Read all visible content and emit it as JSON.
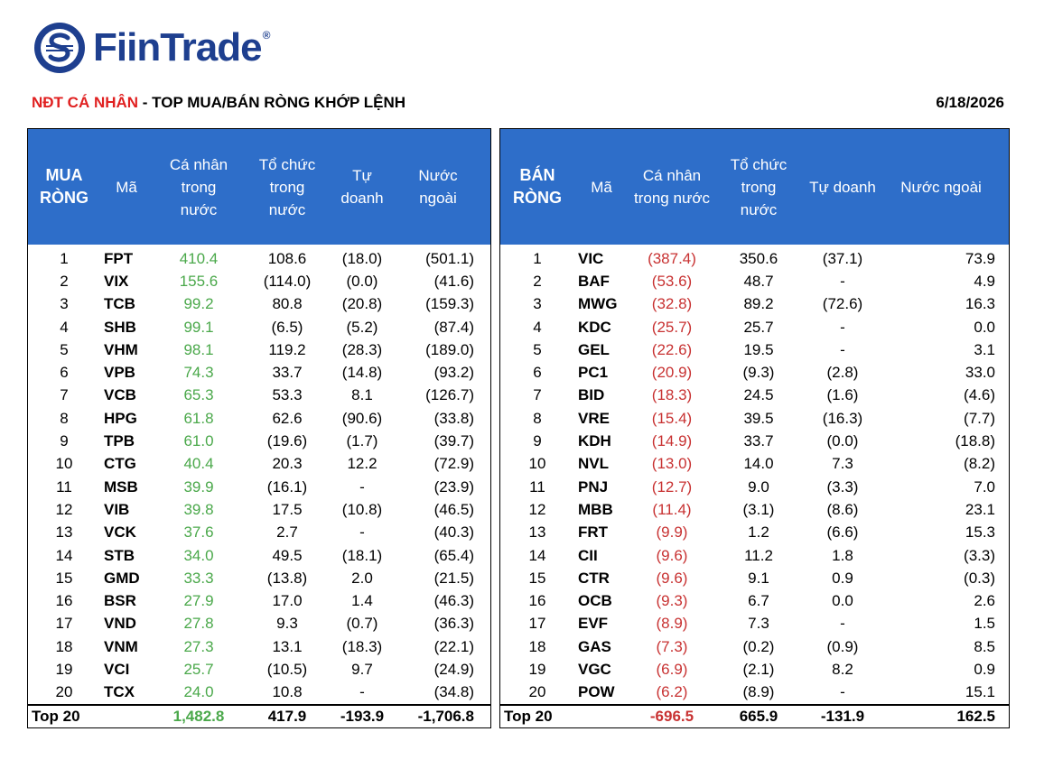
{
  "brand": {
    "name": "FiinTrade",
    "reg": "®"
  },
  "title": {
    "accent": "NĐT CÁ NHÂN",
    "rest": " - TOP MUA/BÁN RÒNG KHỚP LỆNH"
  },
  "date": "6/18/2026",
  "colors": {
    "header_bg": "#2e6ec9",
    "positive": "#4aa84a",
    "negative": "#c83232",
    "brand": "#1e3f8f"
  },
  "buy": {
    "headers": [
      "MUA\nRÒNG",
      "Mã",
      "Cá nhân\ntrong\nnước",
      "Tổ chức\ntrong\nnước",
      "Tự\ndoanh",
      "Nước\nngoài"
    ],
    "rows": [
      [
        "1",
        "FPT",
        "410.4",
        "108.6",
        "(18.0)",
        "(501.1)"
      ],
      [
        "2",
        "VIX",
        "155.6",
        "(114.0)",
        "(0.0)",
        "(41.6)"
      ],
      [
        "3",
        "TCB",
        "99.2",
        "80.8",
        "(20.8)",
        "(159.3)"
      ],
      [
        "4",
        "SHB",
        "99.1",
        "(6.5)",
        "(5.2)",
        "(87.4)"
      ],
      [
        "5",
        "VHM",
        "98.1",
        "119.2",
        "(28.3)",
        "(189.0)"
      ],
      [
        "6",
        "VPB",
        "74.3",
        "33.7",
        "(14.8)",
        "(93.2)"
      ],
      [
        "7",
        "VCB",
        "65.3",
        "53.3",
        "8.1",
        "(126.7)"
      ],
      [
        "8",
        "HPG",
        "61.8",
        "62.6",
        "(90.6)",
        "(33.8)"
      ],
      [
        "9",
        "TPB",
        "61.0",
        "(19.6)",
        "(1.7)",
        "(39.7)"
      ],
      [
        "10",
        "CTG",
        "40.4",
        "20.3",
        "12.2",
        "(72.9)"
      ],
      [
        "11",
        "MSB",
        "39.9",
        "(16.1)",
        "-",
        "(23.9)"
      ],
      [
        "12",
        "VIB",
        "39.8",
        "17.5",
        "(10.8)",
        "(46.5)"
      ],
      [
        "13",
        "VCK",
        "37.6",
        "2.7",
        "-",
        "(40.3)"
      ],
      [
        "14",
        "STB",
        "34.0",
        "49.5",
        "(18.1)",
        "(65.4)"
      ],
      [
        "15",
        "GMD",
        "33.3",
        "(13.8)",
        "2.0",
        "(21.5)"
      ],
      [
        "16",
        "BSR",
        "27.9",
        "17.0",
        "1.4",
        "(46.3)"
      ],
      [
        "17",
        "VND",
        "27.8",
        "9.3",
        "(0.7)",
        "(36.3)"
      ],
      [
        "18",
        "VNM",
        "27.3",
        "13.1",
        "(18.3)",
        "(22.1)"
      ],
      [
        "19",
        "VCI",
        "25.7",
        "(10.5)",
        "9.7",
        "(24.9)"
      ],
      [
        "20",
        "TCX",
        "24.0",
        "10.8",
        "-",
        "(34.8)"
      ]
    ],
    "total": [
      "Top 20",
      "",
      "1,482.8",
      "417.9",
      "-193.9",
      "-1,706.8"
    ]
  },
  "sell": {
    "headers": [
      "BÁN\nRÒNG",
      "Mã",
      "Cá nhân\ntrong nước",
      "Tổ chức\ntrong\nnước",
      "Tự doanh",
      "Nước ngoài"
    ],
    "rows": [
      [
        "1",
        "VIC",
        "(387.4)",
        "350.6",
        "(37.1)",
        "73.9"
      ],
      [
        "2",
        "BAF",
        "(53.6)",
        "48.7",
        "-",
        "4.9"
      ],
      [
        "3",
        "MWG",
        "(32.8)",
        "89.2",
        "(72.6)",
        "16.3"
      ],
      [
        "4",
        "KDC",
        "(25.7)",
        "25.7",
        "-",
        "0.0"
      ],
      [
        "5",
        "GEL",
        "(22.6)",
        "19.5",
        "-",
        "3.1"
      ],
      [
        "6",
        "PC1",
        "(20.9)",
        "(9.3)",
        "(2.8)",
        "33.0"
      ],
      [
        "7",
        "BID",
        "(18.3)",
        "24.5",
        "(1.6)",
        "(4.6)"
      ],
      [
        "8",
        "VRE",
        "(15.4)",
        "39.5",
        "(16.3)",
        "(7.7)"
      ],
      [
        "9",
        "KDH",
        "(14.9)",
        "33.7",
        "(0.0)",
        "(18.8)"
      ],
      [
        "10",
        "NVL",
        "(13.0)",
        "14.0",
        "7.3",
        "(8.2)"
      ],
      [
        "11",
        "PNJ",
        "(12.7)",
        "9.0",
        "(3.3)",
        "7.0"
      ],
      [
        "12",
        "MBB",
        "(11.4)",
        "(3.1)",
        "(8.6)",
        "23.1"
      ],
      [
        "13",
        "FRT",
        "(9.9)",
        "1.2",
        "(6.6)",
        "15.3"
      ],
      [
        "14",
        "CII",
        "(9.6)",
        "11.2",
        "1.8",
        "(3.3)"
      ],
      [
        "15",
        "CTR",
        "(9.6)",
        "9.1",
        "0.9",
        "(0.3)"
      ],
      [
        "16",
        "OCB",
        "(9.3)",
        "6.7",
        "0.0",
        "2.6"
      ],
      [
        "17",
        "EVF",
        "(8.9)",
        "7.3",
        "-",
        "1.5"
      ],
      [
        "18",
        "GAS",
        "(7.3)",
        "(0.2)",
        "(0.9)",
        "8.5"
      ],
      [
        "19",
        "VGC",
        "(6.9)",
        "(2.1)",
        "8.2",
        "0.9"
      ],
      [
        "20",
        "POW",
        "(6.2)",
        "(8.9)",
        "-",
        "15.1"
      ]
    ],
    "total": [
      "Top 20",
      "",
      "-696.5",
      "665.9",
      "-131.9",
      "162.5"
    ]
  }
}
